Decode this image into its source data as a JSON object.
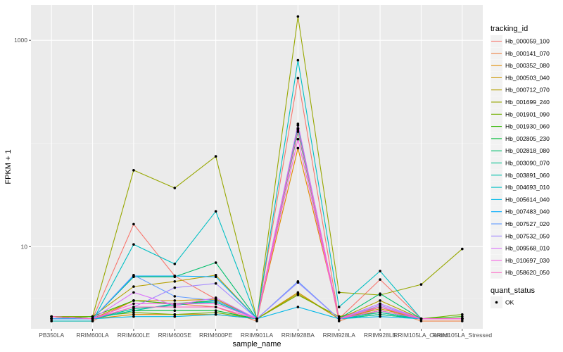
{
  "chart_data": {
    "type": "line",
    "xlabel": "sample_name",
    "ylabel": "FPKM + 1",
    "y_scale": "log10",
    "ylim": [
      1.6,
      2200
    ],
    "y_ticks": [
      10,
      1000
    ],
    "y_tick_labels": [
      "10",
      "1000"
    ],
    "grid": true,
    "background": "#ebebeb",
    "categories": [
      "PB350LA",
      "RRIM600LA",
      "RRIM600LE",
      "RRIM600SE",
      "RRIM600PE",
      "RRIM901LA",
      "RRIM928BA",
      "RRIM928LA",
      "RRIM928LE",
      "RRIM105LA_Control",
      "RRIM105LA_Stressed"
    ],
    "legend": {
      "position": "right",
      "color_title": "tracking_id",
      "shape_title": "quant_status",
      "shape_entries": [
        "OK"
      ]
    },
    "series": [
      {
        "name": "Hb_000059_100",
        "color": "#F8766D",
        "values": [
          2.0,
          2.0,
          16.5,
          5.2,
          3.1,
          2.0,
          430,
          2.0,
          4.8,
          2.0,
          2.0
        ]
      },
      {
        "name": "Hb_000141_070",
        "color": "#EE8043",
        "values": [
          1.9,
          1.9,
          3.0,
          2.8,
          2.6,
          1.9,
          150,
          1.9,
          2.6,
          1.9,
          1.9
        ]
      },
      {
        "name": "Hb_000352_080",
        "color": "#E08B00",
        "values": [
          2.1,
          2.0,
          2.2,
          2.2,
          2.2,
          2.0,
          90,
          2.1,
          2.6,
          2.0,
          2.0
        ]
      },
      {
        "name": "Hb_000503_040",
        "color": "#CC9600",
        "values": [
          2.0,
          2.0,
          3.0,
          3.0,
          3.1,
          2.0,
          3.6,
          2.0,
          2.5,
          2.0,
          2.0
        ]
      },
      {
        "name": "Hb_000712_070",
        "color": "#B49F00",
        "values": [
          2.1,
          2.1,
          4.1,
          4.6,
          5.3,
          2.0,
          3.5,
          2.0,
          3.0,
          2.0,
          2.0
        ]
      },
      {
        "name": "Hb_001699_240",
        "color": "#97A700",
        "values": [
          2.0,
          2.1,
          55.0,
          37.0,
          75.0,
          2.0,
          1700,
          3.6,
          3.4,
          4.3,
          9.5
        ]
      },
      {
        "name": "Hb_001901_090",
        "color": "#72AF00",
        "values": [
          2.1,
          2.1,
          2.3,
          2.2,
          2.3,
          2.0,
          3.4,
          2.1,
          2.3,
          2.0,
          2.2
        ]
      },
      {
        "name": "Hb_001930_060",
        "color": "#2FB600",
        "values": [
          2.0,
          2.1,
          3.0,
          2.8,
          3.0,
          2.0,
          140,
          2.0,
          2.4,
          2.0,
          2.1
        ]
      },
      {
        "name": "Hb_002805_230",
        "color": "#00BA38",
        "values": [
          2.0,
          2.0,
          2.4,
          2.4,
          2.4,
          2.0,
          130,
          2.0,
          2.2,
          2.0,
          2.0
        ]
      },
      {
        "name": "Hb_002818_080",
        "color": "#00BE6C",
        "values": [
          2.0,
          2.0,
          5.1,
          5.1,
          7.0,
          2.0,
          150,
          2.0,
          3.5,
          2.0,
          2.0
        ]
      },
      {
        "name": "Hb_003090_070",
        "color": "#00C08E",
        "values": [
          2.0,
          2.0,
          2.5,
          2.7,
          3.0,
          2.0,
          140,
          2.0,
          2.2,
          2.0,
          2.0
        ]
      },
      {
        "name": "Hb_003891_060",
        "color": "#00C1AB",
        "values": [
          2.0,
          2.0,
          2.4,
          2.8,
          2.9,
          2.0,
          140,
          2.0,
          2.3,
          2.0,
          2.0
        ]
      },
      {
        "name": "Hb_004693_010",
        "color": "#00BFC4",
        "values": [
          1.9,
          1.9,
          10.5,
          6.8,
          22.0,
          2.0,
          640,
          2.6,
          5.8,
          2.0,
          2.0
        ]
      },
      {
        "name": "Hb_005614_040",
        "color": "#00B8E7",
        "values": [
          2.0,
          2.0,
          2.1,
          2.1,
          2.2,
          2.0,
          2.6,
          2.0,
          2.1,
          2.0,
          2.0
        ]
      },
      {
        "name": "Hb_007483_040",
        "color": "#00ABFD",
        "values": [
          2.0,
          2.0,
          5.2,
          5.2,
          5.1,
          2.0,
          4.5,
          2.0,
          2.8,
          2.0,
          2.0
        ]
      },
      {
        "name": "Hb_007527_020",
        "color": "#619CFF",
        "values": [
          2.0,
          2.0,
          5.3,
          3.3,
          3.0,
          2.0,
          4.6,
          2.0,
          2.6,
          2.0,
          2.0
        ]
      },
      {
        "name": "Hb_007532_050",
        "color": "#A58AFF",
        "values": [
          2.1,
          2.0,
          2.6,
          4.0,
          4.4,
          2.0,
          4.5,
          2.0,
          2.7,
          2.0,
          2.0
        ]
      },
      {
        "name": "Hb_009568_010",
        "color": "#DB72FB",
        "values": [
          2.1,
          2.0,
          3.6,
          2.7,
          3.2,
          2.0,
          155,
          2.0,
          2.8,
          2.0,
          2.0
        ]
      },
      {
        "name": "Hb_010697_030",
        "color": "#F564E3",
        "values": [
          2.1,
          2.0,
          2.8,
          2.8,
          2.8,
          2.0,
          110,
          2.0,
          2.4,
          2.0,
          2.0
        ]
      },
      {
        "name": "Hb_058620_050",
        "color": "#FF61C3",
        "values": [
          2.1,
          2.0,
          2.6,
          2.6,
          2.6,
          2.0,
          135,
          2.0,
          2.6,
          2.0,
          2.0
        ]
      }
    ]
  }
}
